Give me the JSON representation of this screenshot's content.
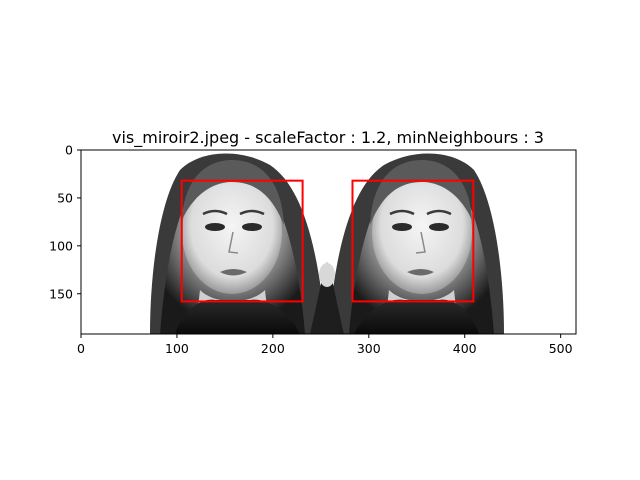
{
  "figure": {
    "title": "vis_miroir2.jpeg - scaleFactor : 1.2, minNeighbours : 3",
    "image_width": 516,
    "image_height": 192,
    "xlim": [
      0,
      516
    ],
    "ylim": [
      192,
      0
    ],
    "x_ticks": [
      {
        "value": 0,
        "label": "0"
      },
      {
        "value": 100,
        "label": "100"
      },
      {
        "value": 200,
        "label": "200"
      },
      {
        "value": 300,
        "label": "300"
      },
      {
        "value": 400,
        "label": "400"
      },
      {
        "value": 500,
        "label": "500"
      }
    ],
    "y_ticks": [
      {
        "value": 0,
        "label": "0"
      },
      {
        "value": 50,
        "label": "50"
      },
      {
        "value": 100,
        "label": "100"
      },
      {
        "value": 150,
        "label": "150"
      }
    ],
    "detections": [
      {
        "x": 105,
        "y": 32,
        "w": 126,
        "h": 126
      },
      {
        "x": 283,
        "y": 32,
        "w": 126,
        "h": 126
      }
    ],
    "colors": {
      "box": "#ff0000",
      "axis": "#000000",
      "background": "#ffffff"
    }
  }
}
